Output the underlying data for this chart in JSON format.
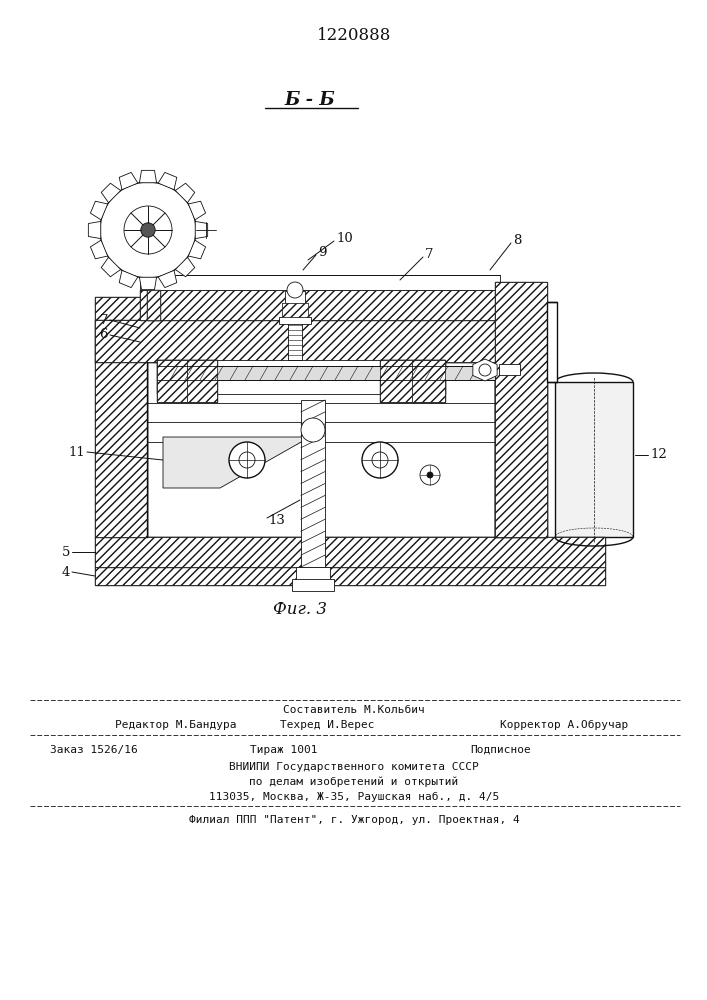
{
  "patent_number": "1220888",
  "section_label": "Б - Б",
  "figure_label": "Фиг. 3",
  "bg_color": "#ffffff",
  "dc": "#111111",
  "footer_line1": "Составитель М.Кольбич",
  "footer_line2_left": "Редактор М.Бандура",
  "footer_line2_mid": "Техред И.Верес",
  "footer_line2_right": "Корректор А.Обручар",
  "footer_line3_left": "Заказ 1526/16",
  "footer_line3_mid": "Тираж 1001",
  "footer_line3_right": "Подписное",
  "footer_line4": "ВНИИПИ Государственного комитета СССР",
  "footer_line5": "по делам изобретений и открытий",
  "footer_line6": "113035, Москва, Ж-35, Раушская наб., д. 4/5",
  "footer_line7": "Филиал ППП \"Патент\", г. Ужгород, ул. Проектная, 4"
}
